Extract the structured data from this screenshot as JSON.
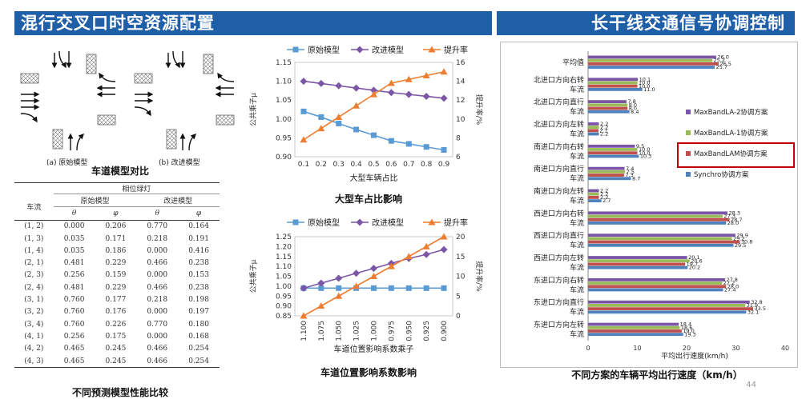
{
  "header": {
    "left_title": "混行交叉口时空资源配置",
    "right_title": "长干线交通信号协调控制"
  },
  "lane_model": {
    "caption": "车道模型对比",
    "original_label": "(a) 原始模型",
    "improved_label": "(b) 改进模型"
  },
  "phase_table": {
    "caption": "不同预测模型性能比较",
    "group_header": "相位绿灯",
    "col_flow": "车流",
    "col_original": "原始模型",
    "col_improved": "改进模型",
    "sym_theta": "θ",
    "sym_phi": "φ",
    "rows": [
      [
        "(1, 2)",
        "0.000",
        "0.206",
        "0.770",
        "0.164"
      ],
      [
        "(1, 3)",
        "0.035",
        "0.171",
        "0.218",
        "0.191"
      ],
      [
        "(1, 4)",
        "0.035",
        "0.186",
        "0.000",
        "0.416"
      ],
      [
        "(2, 1)",
        "0.481",
        "0.229",
        "0.466",
        "0.238"
      ],
      [
        "(2, 3)",
        "0.256",
        "0.159",
        "0.000",
        "0.153"
      ],
      [
        "(2, 4)",
        "0.481",
        "0.229",
        "0.466",
        "0.238"
      ],
      [
        "(3, 1)",
        "0.760",
        "0.177",
        "0.218",
        "0.198"
      ],
      [
        "(3, 2)",
        "0.760",
        "0.176",
        "0.000",
        "0.197"
      ],
      [
        "(3, 4)",
        "0.760",
        "0.226",
        "0.770",
        "0.180"
      ],
      [
        "(4, 1)",
        "0.256",
        "0.175",
        "0.000",
        "0.168"
      ],
      [
        "(4, 2)",
        "0.465",
        "0.245",
        "0.466",
        "0.254"
      ],
      [
        "(4, 3)",
        "0.465",
        "0.245",
        "0.466",
        "0.254"
      ]
    ]
  },
  "page_number": "44",
  "colors": {
    "header_bg": "#1f5fa8",
    "blue": "#5b9bd5",
    "purple": "#7b56a6",
    "orange": "#ed7d31",
    "green": "#9bbb59",
    "red": "#c0504d",
    "highlight": "#c00000"
  },
  "chart_data": [
    {
      "type": "line",
      "caption": "大型车占比影响",
      "xlabel": "大型车辆占比",
      "ylabel": "公共乘子μ",
      "y2label": "提升率/%",
      "x": [
        0.1,
        0.2,
        0.3,
        0.4,
        0.5,
        0.6,
        0.7,
        0.8,
        0.9
      ],
      "x_ticks": [
        "0.1",
        "0.2",
        "0.3",
        "0.4",
        "0.5",
        "0.6",
        "0.7",
        "0.8",
        "0.9"
      ],
      "ylim": [
        0.9,
        1.15
      ],
      "y_ticks": [
        "0.90",
        "0.95",
        "1.00",
        "1.05",
        "1.10",
        "1.15"
      ],
      "y2lim": [
        6,
        16
      ],
      "y2_ticks": [
        "6",
        "8",
        "10",
        "12",
        "14",
        "16"
      ],
      "legend": "top",
      "series": [
        {
          "name": "原始模型",
          "axis": "left",
          "color": "#5b9bd5",
          "marker": "square",
          "values": [
            1.02,
            1.005,
            0.988,
            0.972,
            0.957,
            0.942,
            0.934,
            0.926,
            0.918
          ]
        },
        {
          "name": "改进模型",
          "axis": "left",
          "color": "#7b56a6",
          "marker": "diamond",
          "values": [
            1.1,
            1.094,
            1.088,
            1.082,
            1.076,
            1.07,
            1.065,
            1.06,
            1.055
          ]
        },
        {
          "name": "提升率",
          "axis": "right",
          "color": "#ed7d31",
          "marker": "triangle",
          "values": [
            7.8,
            9.0,
            10.2,
            11.4,
            12.6,
            13.8,
            14.2,
            14.6,
            15.0
          ]
        }
      ]
    },
    {
      "type": "line",
      "caption": "车道位置影响系数影响",
      "xlabel": "车道位置影响系数乘子",
      "ylabel": "公共乘子μ",
      "y2label": "提升率/%",
      "x": [
        1.1,
        1.075,
        1.05,
        1.025,
        1.0,
        0.975,
        0.95,
        0.925,
        0.9
      ],
      "x_ticks": [
        "1.100",
        "1.075",
        "1.050",
        "1.025",
        "1.000",
        "0.975",
        "0.950",
        "0.925",
        "0.900"
      ],
      "ylim": [
        0.85,
        1.25
      ],
      "y_ticks": [
        "0.85",
        "0.90",
        "0.95",
        "1.00",
        "1.05",
        "1.10",
        "1.15",
        "1.20",
        "1.25"
      ],
      "y2lim": [
        0,
        20
      ],
      "y2_ticks": [
        "0",
        "5",
        "10",
        "15",
        "20"
      ],
      "legend": "top",
      "series": [
        {
          "name": "原始模型",
          "axis": "left",
          "color": "#5b9bd5",
          "marker": "square",
          "values": [
            0.99,
            0.99,
            0.99,
            0.99,
            0.99,
            0.99,
            0.99,
            0.99,
            0.99
          ]
        },
        {
          "name": "改进模型",
          "axis": "left",
          "color": "#7b56a6",
          "marker": "diamond",
          "values": [
            0.99,
            1.015,
            1.04,
            1.065,
            1.09,
            1.115,
            1.14,
            1.16,
            1.185
          ]
        },
        {
          "name": "提升率",
          "axis": "right",
          "color": "#ed7d31",
          "marker": "triangle",
          "values": [
            0,
            2.5,
            5.0,
            7.5,
            10.0,
            12.5,
            15.0,
            17.5,
            20.0
          ]
        }
      ]
    },
    {
      "type": "bar",
      "orientation": "horizontal",
      "caption": "不同方案的车辆平均出行速度（km/h）",
      "xlabel": "平均出行速度(km/h)",
      "xlim": [
        0,
        40
      ],
      "x_ticks": [
        "0",
        "10",
        "20",
        "30",
        "40"
      ],
      "legend": "right",
      "categories": [
        "平均值",
        "北进口方向右转车流",
        "北进口方向直行车流",
        "北进口方向左转车流",
        "南进口方向右转车流",
        "南进口方向直行车流",
        "南进口方向左转车流",
        "西进口方向右转车流",
        "西进口方向直行车流",
        "西进口方向左转车流",
        "东进口方向右转车流",
        "东进口方向直行车流",
        "东进口方向左转车流"
      ],
      "category_lines": [
        [
          "平均值"
        ],
        [
          "北进口方向右转",
          "车流"
        ],
        [
          "北进口方向直行",
          "车流"
        ],
        [
          "北进口方向左转",
          "车流"
        ],
        [
          "南进口方向右转",
          "车流"
        ],
        [
          "南进口方向直行",
          "车流"
        ],
        [
          "南进口方向左转",
          "车流"
        ],
        [
          "西进口方向右转",
          "车流"
        ],
        [
          "西进口方向直行",
          "车流"
        ],
        [
          "西进口方向左转",
          "车流"
        ],
        [
          "东进口方向右转",
          "车流"
        ],
        [
          "东进口方向直行",
          "车流"
        ],
        [
          "东进口方向左转",
          "车流"
        ]
      ],
      "series": [
        {
          "name": "MaxBandLA-2协调方案",
          "color": "#7b56a6",
          "values": [
            26.0,
            10.1,
            7.8,
            2.2,
            9.5,
            7.4,
            2.2,
            28.3,
            29.9,
            20.1,
            27.8,
            32.8,
            18.4
          ],
          "labels": [
            "26.0",
            "10.1",
            "7.8",
            "2.2",
            "9.5",
            "7.4",
            "2.2",
            "28.3",
            "29.9",
            "20.1",
            "27.8",
            "32.8",
            "18.4"
          ]
        },
        {
          "name": "MaxBandLA-1协调方案",
          "color": "#9bbb59",
          "values": [
            25.2,
            10.0,
            8.0,
            2.2,
            10.0,
            7.5,
            2.2,
            27.3,
            29.2,
            20.6,
            27.2,
            31.9,
            18.6
          ],
          "labels": [
            "25.2",
            "10.0",
            "8.0",
            "2.2",
            "10.0",
            "7.5",
            "2.2",
            "27.3",
            "29.2",
            "20.6",
            "27.2",
            "31.9",
            "18.6"
          ]
        },
        {
          "name": "MaxBandLAM协调方案",
          "color": "#c0504d",
          "values": [
            26.5,
            10.0,
            8.0,
            2.1,
            10.0,
            7.3,
            2.2,
            28.7,
            30.8,
            19.7,
            28.0,
            33.5,
            19.0
          ],
          "labels": [
            "26.5",
            "10.0",
            "8.0",
            "2.1",
            "10.0",
            "7.3",
            "2.2",
            "28.7",
            "30.8",
            "19.7",
            "28.0",
            "33.5",
            "19.0"
          ]
        },
        {
          "name": "Synchro协调方案",
          "color": "#4f81bd",
          "values": [
            25.7,
            11.0,
            8.4,
            2.2,
            10.3,
            8.7,
            2.7,
            28.0,
            29.5,
            20.2,
            27.4,
            32.1,
            19.3
          ],
          "labels": [
            "25.7",
            "11.0",
            "8.4",
            "2.2",
            "10.3",
            "8.7",
            "2.7",
            "28.0",
            "29.5",
            "20.2",
            "27.4",
            "32.1",
            "19.3"
          ]
        }
      ],
      "legend_order": [
        0,
        1,
        2,
        3
      ],
      "highlighted_series": "MaxBandLAM协调方案"
    }
  ]
}
